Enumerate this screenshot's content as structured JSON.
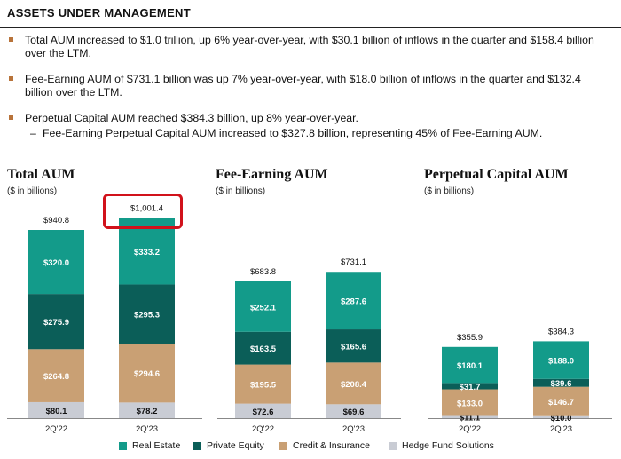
{
  "header": {
    "title": "ASSETS UNDER MANAGEMENT"
  },
  "bullets": [
    {
      "text": "Total AUM increased to $1.0 trillion, up 6% year-over-year, with $30.1 billion of inflows in the quarter and $158.4 billion over the LTM."
    },
    {
      "text": "Fee-Earning AUM of $731.1 billion was up 7% year-over-year, with $18.0 billion of inflows in the quarter and $132.4 billion over the LTM."
    },
    {
      "text": "Perpetual Capital AUM reached $384.3 billion, up 8% year-over-year.",
      "sub": "Fee-Earning Perpetual Capital AUM increased to $327.8 billion, representing 45% of Fee-Earning AUM."
    }
  ],
  "colors": {
    "real_estate": "#139b8a",
    "private_equity": "#0b5e58",
    "credit_insurance": "#c9a074",
    "hedge_fund": "#c9ccd4",
    "highlight": "#d1121b"
  },
  "legend": [
    {
      "label": "Real Estate",
      "color": "#139b8a"
    },
    {
      "label": "Private Equity",
      "color": "#0b5e58"
    },
    {
      "label": "Credit & Insurance",
      "color": "#c9a074"
    },
    {
      "label": "Hedge Fund Solutions",
      "color": "#c9ccd4"
    }
  ],
  "chart_data": [
    {
      "type": "bar",
      "stacked": true,
      "title": "Total AUM",
      "subtitle": "($ in billions)",
      "categories": [
        "2Q'22",
        "2Q'23"
      ],
      "totals": [
        "$940.8",
        "$1,001.4"
      ],
      "highlighted_total": "$1,001.4",
      "series": [
        {
          "name": "Hedge Fund Solutions",
          "values": [
            80.1,
            78.2
          ],
          "labels": [
            "$80.1",
            "$78.2"
          ]
        },
        {
          "name": "Credit & Insurance",
          "values": [
            264.8,
            294.6
          ],
          "labels": [
            "$264.8",
            "$294.6"
          ]
        },
        {
          "name": "Private Equity",
          "values": [
            275.9,
            295.3
          ],
          "labels": [
            "$275.9",
            "$295.3"
          ]
        },
        {
          "name": "Real Estate",
          "values": [
            320.0,
            333.2
          ],
          "labels": [
            "$320.0",
            "$333.2"
          ]
        }
      ]
    },
    {
      "type": "bar",
      "stacked": true,
      "title": "Fee-Earning AUM",
      "subtitle": "($ in billions)",
      "categories": [
        "2Q'22",
        "2Q'23"
      ],
      "totals": [
        "$683.8",
        "$731.1"
      ],
      "series": [
        {
          "name": "Hedge Fund Solutions",
          "values": [
            72.6,
            69.6
          ],
          "labels": [
            "$72.6",
            "$69.6"
          ]
        },
        {
          "name": "Credit & Insurance",
          "values": [
            195.5,
            208.4
          ],
          "labels": [
            "$195.5",
            "$208.4"
          ]
        },
        {
          "name": "Private Equity",
          "values": [
            163.5,
            165.6
          ],
          "labels": [
            "$163.5",
            "$165.6"
          ]
        },
        {
          "name": "Real Estate",
          "values": [
            252.1,
            287.6
          ],
          "labels": [
            "$252.1",
            "$287.6"
          ]
        }
      ]
    },
    {
      "type": "bar",
      "stacked": true,
      "title": "Perpetual Capital AUM",
      "subtitle": "($ in billions)",
      "categories": [
        "2Q'22",
        "2Q'23"
      ],
      "totals": [
        "$355.9",
        "$384.3"
      ],
      "series": [
        {
          "name": "Hedge Fund Solutions",
          "values": [
            11.1,
            10.0
          ],
          "labels": [
            "$11.1",
            "$10.0"
          ]
        },
        {
          "name": "Credit & Insurance",
          "values": [
            133.0,
            146.7
          ],
          "labels": [
            "$133.0",
            "$146.7"
          ]
        },
        {
          "name": "Private Equity",
          "values": [
            31.7,
            39.6
          ],
          "labels": [
            "$31.7",
            "$39.6"
          ]
        },
        {
          "name": "Real Estate",
          "values": [
            180.1,
            188.0
          ],
          "labels": [
            "$180.1",
            "$188.0"
          ]
        }
      ]
    }
  ]
}
